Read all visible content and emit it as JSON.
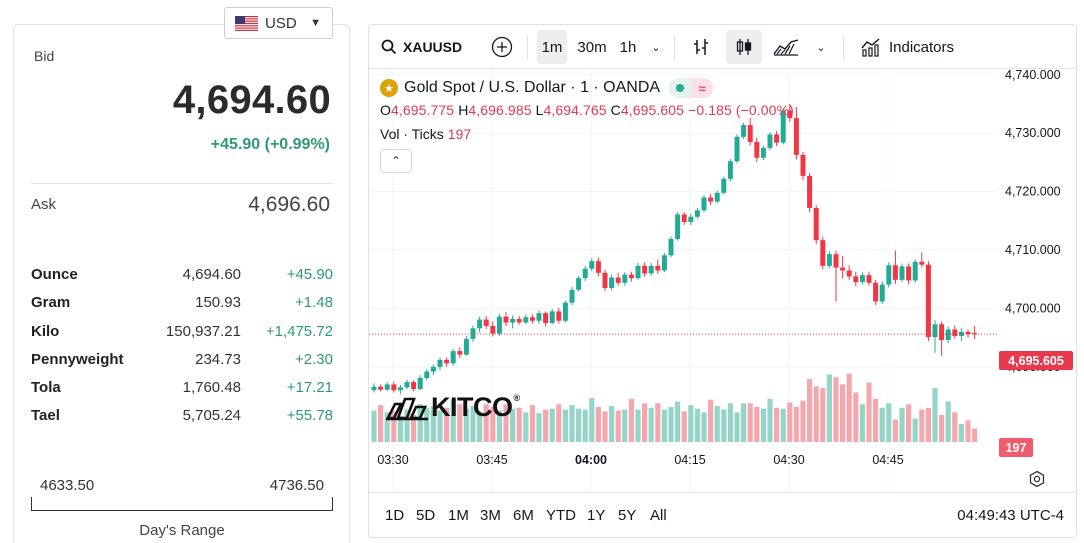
{
  "currency_selector": {
    "value": "USD"
  },
  "bid": {
    "label": "Bid",
    "price": "4,694.60",
    "change": "+45.90 (+0.99%)"
  },
  "ask": {
    "label": "Ask",
    "price": "4,696.60"
  },
  "units": [
    {
      "name": "Ounce",
      "price": "4,694.60",
      "change": "+45.90"
    },
    {
      "name": "Gram",
      "price": "150.93",
      "change": "+1.48"
    },
    {
      "name": "Kilo",
      "price": "150,937.21",
      "change": "+1,475.72"
    },
    {
      "name": "Pennyweight",
      "price": "234.73",
      "change": "+2.30"
    },
    {
      "name": "Tola",
      "price": "1,760.48",
      "change": "+17.21"
    },
    {
      "name": "Tael",
      "price": "5,705.24",
      "change": "+55.78"
    }
  ],
  "days_range": {
    "low": "4633.50",
    "high": "4736.50",
    "label": "Day's Range"
  },
  "toolbar": {
    "symbol": "XAUUSD",
    "intervals": [
      "1m",
      "30m",
      "1h"
    ],
    "active_interval": "1m",
    "indicators_label": "Indicators"
  },
  "legend": {
    "title": "Gold Spot / U.S. Dollar · 1 · OANDA",
    "o_label": "O",
    "o": "4,695.775",
    "h_label": "H",
    "h": "4,696.985",
    "l_label": "L",
    "l": "4,694.765",
    "c_label": "C",
    "c": "4,695.605",
    "change": "−0.185 (−0.00%)",
    "vol_label": "Vol · Ticks",
    "vol_value": "197"
  },
  "logo_text": "KITCO",
  "logo_mark": "®",
  "last_price_tag": "4,695.605",
  "last_volume_tag": "197",
  "ranges": [
    "1D",
    "5D",
    "1M",
    "3M",
    "6M",
    "YTD",
    "1Y",
    "5Y",
    "All"
  ],
  "clock": "04:49:43 UTC-4",
  "colors": {
    "up": "#22ab94",
    "down": "#f23645",
    "vol_up": "#95d5c8",
    "vol_down": "#f4a8ae",
    "gold": "#d9a40b"
  },
  "chart_data": {
    "type": "candlestick",
    "y_ticks": [
      "4,740.000",
      "4,730.000",
      "4,720.000",
      "4,710.000",
      "4,700.000",
      "4,690.000"
    ],
    "x_ticks": [
      "03:30",
      "03:45",
      "04:00",
      "04:15",
      "04:30",
      "04:45"
    ],
    "x_ticks_bold": [
      "04:00"
    ],
    "ylim": [
      4684.5,
      4741
    ],
    "start_minute": 0,
    "candles": [
      [
        4686.0,
        4687.2,
        4685.6,
        4686.6
      ],
      [
        4686.6,
        4687.0,
        4685.8,
        4686.1
      ],
      [
        4686.1,
        4687.4,
        4685.9,
        4687.0
      ],
      [
        4687.0,
        4687.5,
        4685.6,
        4686.0
      ],
      [
        4686.0,
        4686.9,
        4685.3,
        4686.5
      ],
      [
        4686.5,
        4687.8,
        4686.2,
        4687.4
      ],
      [
        4687.4,
        4687.7,
        4685.8,
        4686.2
      ],
      [
        4686.2,
        4688.6,
        4686.0,
        4688.1
      ],
      [
        4688.1,
        4689.6,
        4687.7,
        4689.2
      ],
      [
        4689.2,
        4690.4,
        4688.6,
        4690.0
      ],
      [
        4690.0,
        4691.6,
        4689.4,
        4691.2
      ],
      [
        4691.2,
        4691.6,
        4690.0,
        4690.6
      ],
      [
        4690.6,
        4693.1,
        4690.2,
        4692.7
      ],
      [
        4692.7,
        4693.3,
        4691.5,
        4692.1
      ],
      [
        4692.1,
        4695.3,
        4691.9,
        4694.8
      ],
      [
        4694.8,
        4697.1,
        4694.3,
        4696.6
      ],
      [
        4696.6,
        4698.6,
        4695.9,
        4698.1
      ],
      [
        4698.1,
        4698.7,
        4696.5,
        4697.0
      ],
      [
        4697.0,
        4697.8,
        4695.2,
        4695.7
      ],
      [
        4695.7,
        4699.1,
        4695.3,
        4698.6
      ],
      [
        4698.6,
        4699.4,
        4697.0,
        4697.6
      ],
      [
        4697.6,
        4698.8,
        4696.6,
        4698.2
      ],
      [
        4698.2,
        4698.7,
        4697.2,
        4697.6
      ],
      [
        4697.6,
        4699.0,
        4697.3,
        4698.5
      ],
      [
        4698.5,
        4699.0,
        4697.4,
        4697.9
      ],
      [
        4697.9,
        4699.7,
        4697.4,
        4699.2
      ],
      [
        4699.2,
        4699.5,
        4696.9,
        4697.5
      ],
      [
        4697.5,
        4699.9,
        4697.3,
        4699.5
      ],
      [
        4699.5,
        4700.1,
        4697.4,
        4697.9
      ],
      [
        4697.9,
        4701.3,
        4697.6,
        4701.0
      ],
      [
        4701.0,
        4703.7,
        4700.6,
        4703.2
      ],
      [
        4703.2,
        4705.6,
        4702.9,
        4705.2
      ],
      [
        4705.2,
        4707.3,
        4704.7,
        4706.8
      ],
      [
        4706.8,
        4708.6,
        4706.4,
        4708.1
      ],
      [
        4708.1,
        4708.7,
        4705.5,
        4706.1
      ],
      [
        4706.1,
        4706.6,
        4703.0,
        4703.5
      ],
      [
        4703.5,
        4705.8,
        4703.1,
        4705.3
      ],
      [
        4705.3,
        4706.1,
        4703.9,
        4704.4
      ],
      [
        4704.4,
        4706.2,
        4703.9,
        4705.8
      ],
      [
        4705.8,
        4706.3,
        4704.6,
        4705.2
      ],
      [
        4705.2,
        4707.8,
        4704.9,
        4707.3
      ],
      [
        4707.3,
        4707.9,
        4705.4,
        4706.0
      ],
      [
        4706.0,
        4707.8,
        4705.6,
        4707.3
      ],
      [
        4707.3,
        4708.4,
        4705.9,
        4706.5
      ],
      [
        4706.5,
        4709.5,
        4706.2,
        4709.1
      ],
      [
        4709.1,
        4712.3,
        4708.8,
        4711.9
      ],
      [
        4711.9,
        4716.5,
        4711.6,
        4716.1
      ],
      [
        4716.1,
        4716.5,
        4714.3,
        4714.8
      ],
      [
        4714.8,
        4716.2,
        4714.3,
        4715.7
      ],
      [
        4715.7,
        4717.2,
        4715.4,
        4716.8
      ],
      [
        4716.8,
        4719.4,
        4716.5,
        4719.0
      ],
      [
        4719.0,
        4719.6,
        4717.7,
        4718.3
      ],
      [
        4718.3,
        4720.2,
        4718.0,
        4719.8
      ],
      [
        4719.8,
        4722.6,
        4719.5,
        4722.2
      ],
      [
        4722.2,
        4725.6,
        4721.8,
        4725.2
      ],
      [
        4725.2,
        4729.8,
        4724.9,
        4729.4
      ],
      [
        4729.4,
        4731.8,
        4729.0,
        4731.4
      ],
      [
        4731.4,
        4732.6,
        4727.9,
        4728.5
      ],
      [
        4728.5,
        4729.3,
        4725.1,
        4725.8
      ],
      [
        4725.8,
        4727.9,
        4725.4,
        4727.5
      ],
      [
        4727.5,
        4730.2,
        4727.1,
        4729.8
      ],
      [
        4729.8,
        4730.4,
        4727.8,
        4728.4
      ],
      [
        4728.4,
        4734.3,
        4728.1,
        4733.9
      ],
      [
        4733.9,
        4735.0,
        4732.0,
        4732.6
      ],
      [
        4732.6,
        4734.5,
        4725.5,
        4726.3
      ],
      [
        4726.3,
        4726.8,
        4722.0,
        4722.7
      ],
      [
        4722.7,
        4723.2,
        4716.5,
        4717.2
      ],
      [
        4717.2,
        4717.7,
        4711.0,
        4711.7
      ],
      [
        4711.7,
        4712.3,
        4706.7,
        4707.3
      ],
      [
        4707.3,
        4709.8,
        4706.9,
        4709.3
      ],
      [
        4709.3,
        4709.9,
        4701.2,
        4707.0
      ],
      [
        4707.0,
        4709.0,
        4705.1,
        4706.5
      ],
      [
        4706.5,
        4707.4,
        4704.9,
        4705.5
      ],
      [
        4705.5,
        4706.3,
        4703.8,
        4704.5
      ],
      [
        4704.5,
        4706.2,
        4704.1,
        4705.7
      ],
      [
        4705.7,
        4706.3,
        4703.9,
        4704.4
      ],
      [
        4704.4,
        4704.9,
        4700.6,
        4701.2
      ],
      [
        4701.2,
        4704.6,
        4700.8,
        4704.1
      ],
      [
        4704.1,
        4707.9,
        4703.6,
        4707.4
      ],
      [
        4707.4,
        4709.9,
        4704.2,
        4704.9
      ],
      [
        4704.9,
        4707.7,
        4704.5,
        4707.2
      ],
      [
        4707.2,
        4707.7,
        4704.1,
        4704.8
      ],
      [
        4704.8,
        4708.4,
        4704.4,
        4708.0
      ],
      [
        4708.0,
        4709.6,
        4707.0,
        4707.5
      ],
      [
        4707.5,
        4708.1,
        4694.4,
        4695.1
      ],
      [
        4695.1,
        4698.0,
        4692.4,
        4697.3
      ],
      [
        4697.3,
        4697.8,
        4691.9,
        4694.6
      ],
      [
        4694.6,
        4696.9,
        4694.1,
        4696.4
      ],
      [
        4696.4,
        4697.1,
        4694.8,
        4695.3
      ],
      [
        4695.3,
        4696.6,
        4694.4,
        4696.0
      ],
      [
        4696.0,
        4696.4,
        4695.0,
        4695.6
      ],
      [
        4695.775,
        4696.985,
        4694.765,
        4695.605
      ]
    ],
    "volume_scale_max": 100,
    "volumes": [
      35,
      41,
      33,
      34,
      29,
      36,
      30,
      42,
      38,
      40,
      35,
      38,
      47,
      42,
      37,
      40,
      34,
      42,
      39,
      35,
      42,
      37,
      38,
      33,
      41,
      32,
      36,
      37,
      42,
      36,
      41,
      37,
      36,
      49,
      39,
      34,
      40,
      35,
      36,
      48,
      36,
      43,
      38,
      43,
      36,
      39,
      45,
      34,
      41,
      37,
      33,
      47,
      40,
      36,
      43,
      33,
      43,
      43,
      39,
      37,
      48,
      38,
      37,
      44,
      39,
      46,
      70,
      62,
      60,
      75,
      72,
      64,
      76,
      55,
      42,
      66,
      48,
      38,
      43,
      25,
      38,
      42,
      26,
      36,
      38,
      60,
      30,
      45,
      33,
      20,
      24,
      15
    ]
  }
}
